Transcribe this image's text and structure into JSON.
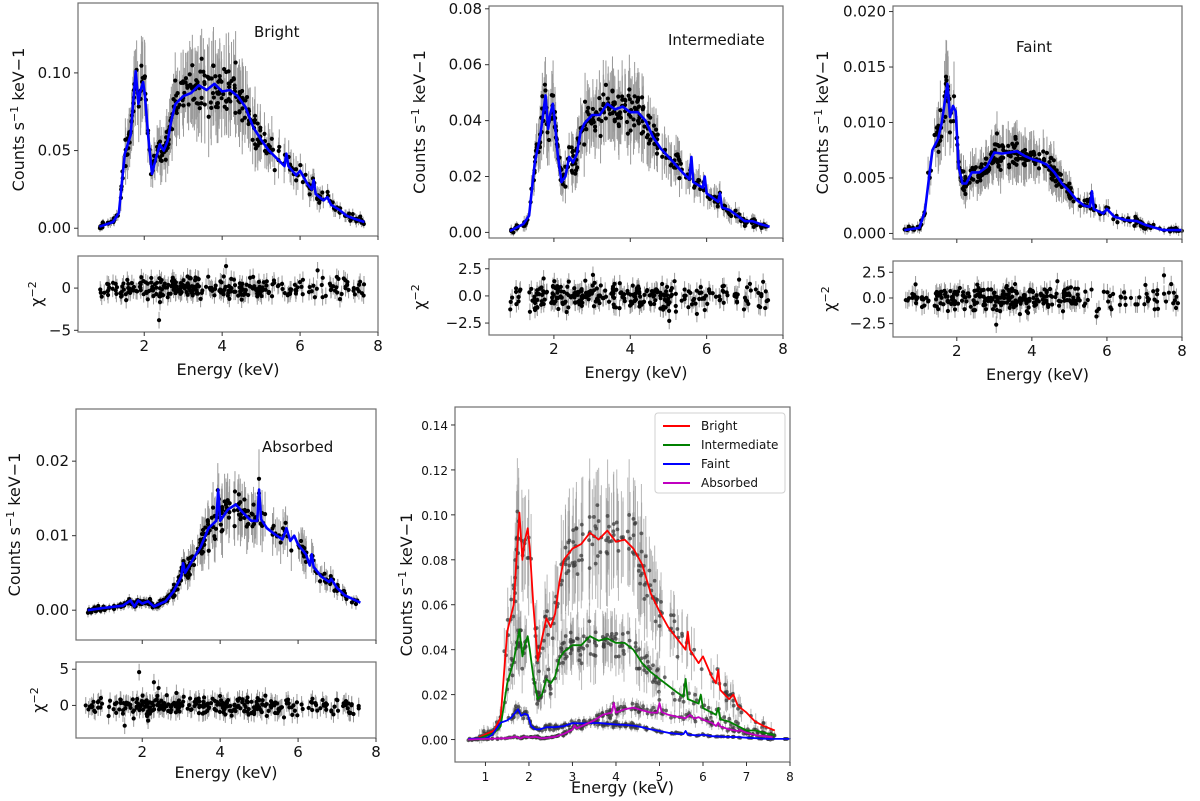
{
  "chart_data": [
    {
      "id": "bright",
      "type": "line",
      "annotation": "Bright",
      "xlabel": "Energy (keV)",
      "ylabel": "Counts s^-1 keV-1",
      "xlim": [
        0.3,
        8
      ],
      "ylim": [
        -0.005,
        0.145
      ],
      "xticks": [
        2,
        4,
        6,
        8
      ],
      "yticks": [
        0.0,
        0.05,
        0.1
      ],
      "ytick_labels": [
        "0.00",
        "0.05",
        "0.10"
      ],
      "model_color": "#0000ff",
      "data_color": "#000000",
      "model": {
        "x": [
          0.85,
          1.2,
          1.35,
          1.5,
          1.65,
          1.78,
          1.85,
          1.9,
          1.97,
          2.02,
          2.1,
          2.2,
          2.3,
          2.4,
          2.5,
          2.6,
          2.7,
          2.8,
          3.0,
          3.2,
          3.4,
          3.6,
          3.8,
          4.0,
          4.2,
          4.4,
          4.6,
          4.8,
          5.0,
          5.2,
          5.4,
          5.6,
          5.65,
          5.7,
          5.9,
          6.0,
          6.2,
          6.3,
          6.35,
          6.4,
          6.6,
          6.7,
          6.8,
          7.0,
          7.2,
          7.4,
          7.65
        ],
        "y": [
          0.001,
          0.004,
          0.01,
          0.048,
          0.06,
          0.101,
          0.08,
          0.088,
          0.094,
          0.085,
          0.06,
          0.035,
          0.045,
          0.054,
          0.05,
          0.056,
          0.07,
          0.08,
          0.085,
          0.087,
          0.092,
          0.089,
          0.093,
          0.088,
          0.089,
          0.085,
          0.078,
          0.065,
          0.057,
          0.05,
          0.045,
          0.04,
          0.048,
          0.04,
          0.034,
          0.037,
          0.028,
          0.025,
          0.031,
          0.022,
          0.018,
          0.02,
          0.015,
          0.012,
          0.008,
          0.006,
          0.004
        ]
      },
      "residuals": {
        "ylabel": "χ^-2",
        "ylim": [
          -5.2,
          3.8
        ],
        "yticks": [
          -5,
          0
        ],
        "ytick_labels": [
          "−5",
          "0"
        ],
        "outliers": [
          {
            "x": 2.38,
            "y": -3.8
          },
          {
            "x": 4.1,
            "y": 2.6
          },
          {
            "x": 6.45,
            "y": 2.1
          }
        ]
      }
    },
    {
      "id": "intermediate",
      "type": "line",
      "annotation": "Intermediate",
      "xlabel": "Energy (keV)",
      "ylabel": "Counts s^-1 keV-1",
      "xlim": [
        0.3,
        8
      ],
      "ylim": [
        -0.002,
        0.081
      ],
      "xticks": [
        2,
        4,
        6,
        8
      ],
      "yticks": [
        0.0,
        0.02,
        0.04,
        0.06,
        0.08
      ],
      "ytick_labels": [
        "0.00",
        "0.02",
        "0.04",
        "0.06",
        "0.08"
      ],
      "model_color": "#0000ff",
      "data_color": "#000000",
      "model": {
        "x": [
          0.85,
          1.2,
          1.35,
          1.5,
          1.65,
          1.78,
          1.85,
          1.9,
          1.97,
          2.02,
          2.1,
          2.2,
          2.3,
          2.4,
          2.5,
          2.6,
          2.7,
          2.8,
          3.0,
          3.2,
          3.4,
          3.6,
          3.8,
          4.0,
          4.2,
          4.4,
          4.6,
          4.8,
          5.0,
          5.2,
          5.4,
          5.55,
          5.6,
          5.65,
          5.9,
          5.95,
          6.0,
          6.3,
          6.35,
          6.4,
          6.6,
          6.8,
          7.0,
          7.2,
          7.4,
          7.65
        ],
        "y": [
          0.0005,
          0.003,
          0.006,
          0.025,
          0.035,
          0.049,
          0.037,
          0.042,
          0.046,
          0.04,
          0.028,
          0.018,
          0.02,
          0.027,
          0.025,
          0.028,
          0.036,
          0.039,
          0.042,
          0.042,
          0.046,
          0.044,
          0.045,
          0.043,
          0.043,
          0.04,
          0.034,
          0.03,
          0.027,
          0.024,
          0.021,
          0.019,
          0.027,
          0.018,
          0.016,
          0.02,
          0.014,
          0.011,
          0.014,
          0.009,
          0.008,
          0.006,
          0.004,
          0.004,
          0.003,
          0.002
        ]
      },
      "residuals": {
        "ylabel": "χ^-2",
        "ylim": [
          -3.6,
          3.4
        ],
        "yticks": [
          -2.5,
          0.0,
          2.5
        ],
        "ytick_labels": [
          "−2.5",
          "0.0",
          "2.5"
        ],
        "outliers": [
          {
            "x": 7.48,
            "y": 1.3
          },
          {
            "x": 6.85,
            "y": 1.5
          },
          {
            "x": 5.02,
            "y": -2.3
          }
        ]
      }
    },
    {
      "id": "faint",
      "type": "line",
      "annotation": "Faint",
      "xlabel": "Energy (keV)",
      "ylabel": "Counts s^-1 keV-1",
      "xlim": [
        0.3,
        8
      ],
      "ylim": [
        -0.0005,
        0.0205
      ],
      "xticks": [
        2,
        4,
        6,
        8
      ],
      "yticks": [
        0.0,
        0.005,
        0.01,
        0.015,
        0.02
      ],
      "ytick_labels": [
        "0.000",
        "0.005",
        "0.010",
        "0.015",
        "0.020"
      ],
      "model_color": "#0000ff",
      "data_color": "#000000",
      "model": {
        "x": [
          0.6,
          1.0,
          1.15,
          1.35,
          1.5,
          1.6,
          1.75,
          1.82,
          1.9,
          1.97,
          2.05,
          2.15,
          2.25,
          2.4,
          2.6,
          2.8,
          3.0,
          3.2,
          3.4,
          3.6,
          3.8,
          4.0,
          4.2,
          4.4,
          4.6,
          4.8,
          5.0,
          5.2,
          5.4,
          5.55,
          5.6,
          5.65,
          5.9,
          6.0,
          6.2,
          6.5,
          6.8,
          7.0,
          7.5,
          8.0
        ],
        "y": [
          0.0003,
          0.0005,
          0.002,
          0.0075,
          0.0085,
          0.01,
          0.0135,
          0.0105,
          0.0115,
          0.011,
          0.006,
          0.0045,
          0.0045,
          0.0055,
          0.0055,
          0.006,
          0.0073,
          0.0072,
          0.0073,
          0.0074,
          0.007,
          0.0067,
          0.0065,
          0.0062,
          0.0055,
          0.0045,
          0.0038,
          0.003,
          0.0025,
          0.0024,
          0.0038,
          0.0022,
          0.0018,
          0.0022,
          0.0015,
          0.0012,
          0.0011,
          0.0008,
          0.0003,
          0.0003
        ]
      },
      "residuals": {
        "ylabel": "χ^-2",
        "ylim": [
          -3.8,
          3.6
        ],
        "yticks": [
          -2.5,
          0.0,
          2.5
        ],
        "ytick_labels": [
          "−2.5",
          "0.0",
          "2.5"
        ],
        "outliers": [
          {
            "x": 7.52,
            "y": 2.2
          },
          {
            "x": 5.72,
            "y": -1.8
          },
          {
            "x": 3.05,
            "y": -2.6
          }
        ]
      }
    },
    {
      "id": "absorbed",
      "type": "line",
      "annotation": "Absorbed",
      "xlabel": "Energy (keV)",
      "ylabel": "Counts s^-1 keV-1",
      "xlim": [
        0.3,
        8
      ],
      "ylim": [
        -0.004,
        0.027
      ],
      "xticks": [
        2,
        4,
        6,
        8
      ],
      "yticks": [
        0.0,
        0.01,
        0.02
      ],
      "ytick_labels": [
        "0.00",
        "0.01",
        "0.02"
      ],
      "model_color": "#0000ff",
      "data_color": "#000000",
      "model": {
        "x": [
          0.6,
          1.0,
          1.5,
          1.7,
          1.8,
          1.9,
          2.0,
          2.15,
          2.3,
          2.6,
          2.8,
          3.0,
          3.05,
          3.1,
          3.3,
          3.5,
          3.7,
          3.9,
          3.95,
          4.0,
          4.2,
          4.4,
          4.6,
          4.8,
          4.95,
          5.0,
          5.05,
          5.2,
          5.4,
          5.6,
          5.7,
          5.8,
          5.9,
          6.0,
          6.2,
          6.3,
          6.35,
          6.4,
          6.6,
          6.8,
          6.85,
          7.0,
          7.2,
          7.4,
          7.6
        ],
        "y": [
          0.0,
          0.0003,
          0.0006,
          0.0013,
          0.0005,
          0.0013,
          0.0009,
          0.0012,
          0.0005,
          0.0012,
          0.0025,
          0.0045,
          0.0063,
          0.005,
          0.0068,
          0.0085,
          0.011,
          0.012,
          0.0162,
          0.012,
          0.0135,
          0.0142,
          0.013,
          0.012,
          0.012,
          0.0162,
          0.0122,
          0.011,
          0.0102,
          0.0095,
          0.011,
          0.0093,
          0.01,
          0.0088,
          0.0075,
          0.006,
          0.0075,
          0.0058,
          0.0045,
          0.0038,
          0.0042,
          0.003,
          0.002,
          0.0015,
          0.001
        ]
      },
      "residuals": {
        "ylabel": "χ^-2",
        "ylim": [
          -4.5,
          6.0
        ],
        "yticks": [
          0,
          5
        ],
        "ytick_labels": [
          "0",
          "5"
        ],
        "outliers": [
          {
            "x": 0.55,
            "y": 0.0
          },
          {
            "x": 0.75,
            "y": 0.5
          },
          {
            "x": 1.15,
            "y": -0.2
          },
          {
            "x": 1.55,
            "y": -2.8
          },
          {
            "x": 1.78,
            "y": -1.8
          },
          {
            "x": 1.92,
            "y": 4.6
          },
          {
            "x": 2.02,
            "y": -0.6
          },
          {
            "x": 2.15,
            "y": -2.1
          },
          {
            "x": 2.3,
            "y": 3.2
          },
          {
            "x": 2.42,
            "y": 2.4
          }
        ]
      }
    },
    {
      "id": "combined",
      "type": "line",
      "xlabel": "Energy (keV)",
      "ylabel": "Counts s^-1 keV-1",
      "xlim": [
        0.3,
        8
      ],
      "ylim": [
        -0.01,
        0.148
      ],
      "xticks": [
        1,
        2,
        3,
        4,
        5,
        6,
        7,
        8
      ],
      "yticks": [
        0.0,
        0.02,
        0.04,
        0.06,
        0.08,
        0.1,
        0.12,
        0.14
      ],
      "ytick_labels": [
        "0.00",
        "0.02",
        "0.04",
        "0.06",
        "0.08",
        "0.10",
        "0.12",
        "0.14"
      ],
      "legend_position": "top-right",
      "legend": [
        {
          "label": "Bright",
          "color": "#ff0000"
        },
        {
          "label": "Intermediate",
          "color": "#008000"
        },
        {
          "label": "Faint",
          "color": "#0000ff"
        },
        {
          "label": "Absorbed",
          "color": "#c000c0"
        }
      ],
      "series_ref": [
        "bright",
        "intermediate",
        "faint",
        "absorbed"
      ]
    }
  ]
}
